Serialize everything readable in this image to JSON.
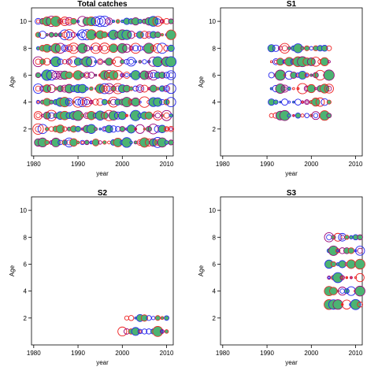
{
  "colors": {
    "fill": "#4CB372",
    "blue_ring": "#2222EE",
    "purple_ring": "#990077",
    "red_ring": "#EE2222"
  },
  "chart_data": [
    {
      "type": "scatter",
      "title": "Total catches",
      "xlabel": "year",
      "ylabel": "Age",
      "xlim": [
        1979.5,
        2011.5
      ],
      "ylim": [
        0,
        11
      ],
      "xticks": [
        1980,
        1990,
        2000,
        2010
      ],
      "yticks": [
        2,
        4,
        6,
        8,
        10
      ],
      "years": [
        1981,
        2011
      ],
      "ages": [
        1,
        2,
        3,
        4,
        5,
        6,
        7,
        8,
        9,
        10
      ],
      "bubble_style": "green fill with red/blue/purple rings, radius proportional to catch size"
    },
    {
      "type": "scatter",
      "title": "S1",
      "xlabel": "year",
      "ylabel": "Age",
      "xlim": [
        1979.5,
        2011.5
      ],
      "ylim": [
        0,
        11
      ],
      "xticks": [
        1980,
        1990,
        2000,
        2010
      ],
      "yticks": [
        2,
        4,
        6,
        8,
        10
      ],
      "years": [
        1991,
        2004
      ],
      "ages": [
        3,
        4,
        5,
        6,
        7,
        8
      ]
    },
    {
      "type": "scatter",
      "title": "S2",
      "xlabel": "year",
      "ylabel": "Age",
      "xlim": [
        1979.5,
        2011.5
      ],
      "ylim": [
        0,
        11
      ],
      "xticks": [
        1980,
        1990,
        2000,
        2010
      ],
      "yticks": [
        2,
        4,
        6,
        8,
        10
      ],
      "years": [
        2000,
        2010
      ],
      "ages": [
        1,
        2
      ]
    },
    {
      "type": "scatter",
      "title": "S3",
      "xlabel": "year",
      "ylabel": "Age",
      "xlim": [
        1979.5,
        2011.5
      ],
      "ylim": [
        0,
        11
      ],
      "xticks": [
        1980,
        1990,
        2000,
        2010
      ],
      "yticks": [
        2,
        4,
        6,
        8,
        10
      ],
      "years": [
        2004,
        2011
      ],
      "ages": [
        3,
        4,
        5,
        6,
        7,
        8
      ]
    }
  ]
}
